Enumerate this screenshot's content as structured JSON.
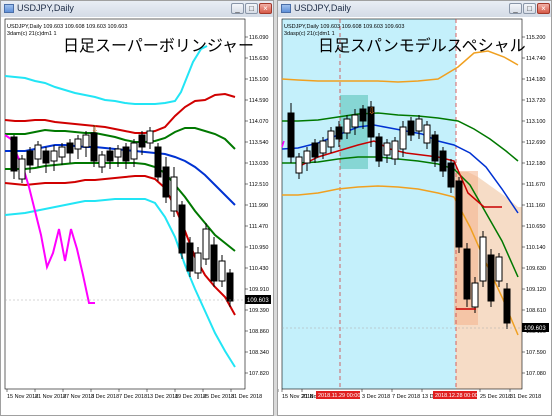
{
  "left_window": {
    "title": "USDJPY,Daily",
    "info_line": "USDJPY,Daily  109.603 109.608 109.603 109.603",
    "indicator_line": "3dam(c) 21(c)dm1 1",
    "overlay_text": "日足スーパーボリンジャー",
    "price_ticks": [
      "116.090",
      "115.630",
      "115.100",
      "114.590",
      "114.070",
      "113.540",
      "113.030",
      "112.510",
      "111.990",
      "111.470",
      "110.950",
      "110.430",
      "109.910",
      "109.390",
      "108.860",
      "108.340",
      "107.820"
    ],
    "current_price": "109.603",
    "date_ticks": [
      "15 Nov 2018",
      "21 Nov 2018",
      "27 Nov 2018",
      "3 Dec 2018",
      "7 Dec 2018",
      "13 Dec 2018",
      "19 Dec 2018",
      "25 Dec 2018",
      "31 Dec 2018"
    ]
  },
  "right_window": {
    "title": "USDJPY,Daily",
    "info_line": "USDJPY,Daily  109.603 109.608 109.603 109.603",
    "indicator_line": "3dasp(c) 21(c)dm1 1",
    "overlay_text": "日足スパンモデルスペシャル",
    "price_ticks": [
      "115.200",
      "114.740",
      "114.180",
      "113.720",
      "113.100",
      "112.690",
      "112.180",
      "111.670",
      "111.160",
      "110.650",
      "110.140",
      "109.630",
      "109.120",
      "108.610",
      "108.100",
      "107.590",
      "107.080"
    ],
    "current_price": "109.603",
    "date_ticks": [
      "15 Nov 2018",
      "21 Nov 2018",
      "27 Nov 2018",
      "3 Dec 2018",
      "7 Dec 2018",
      "13 Dec 2018",
      "25 Dec 2018",
      "31 Dec 2018"
    ],
    "highlight_date_1": "2018.11.29 00:00",
    "highlight_date_2": "2018.12.28 00:00"
  },
  "window_buttons": {
    "minimize": "_",
    "maximize": "□",
    "close": "×"
  },
  "colors": {
    "up_line": "#00e5ff",
    "up2": "#d30000",
    "mid1": "#007800",
    "center": "#0032d2",
    "lag": "#ff00ff",
    "cloud": "#bfeefa",
    "cloud_red": "#f6d2b4"
  }
}
